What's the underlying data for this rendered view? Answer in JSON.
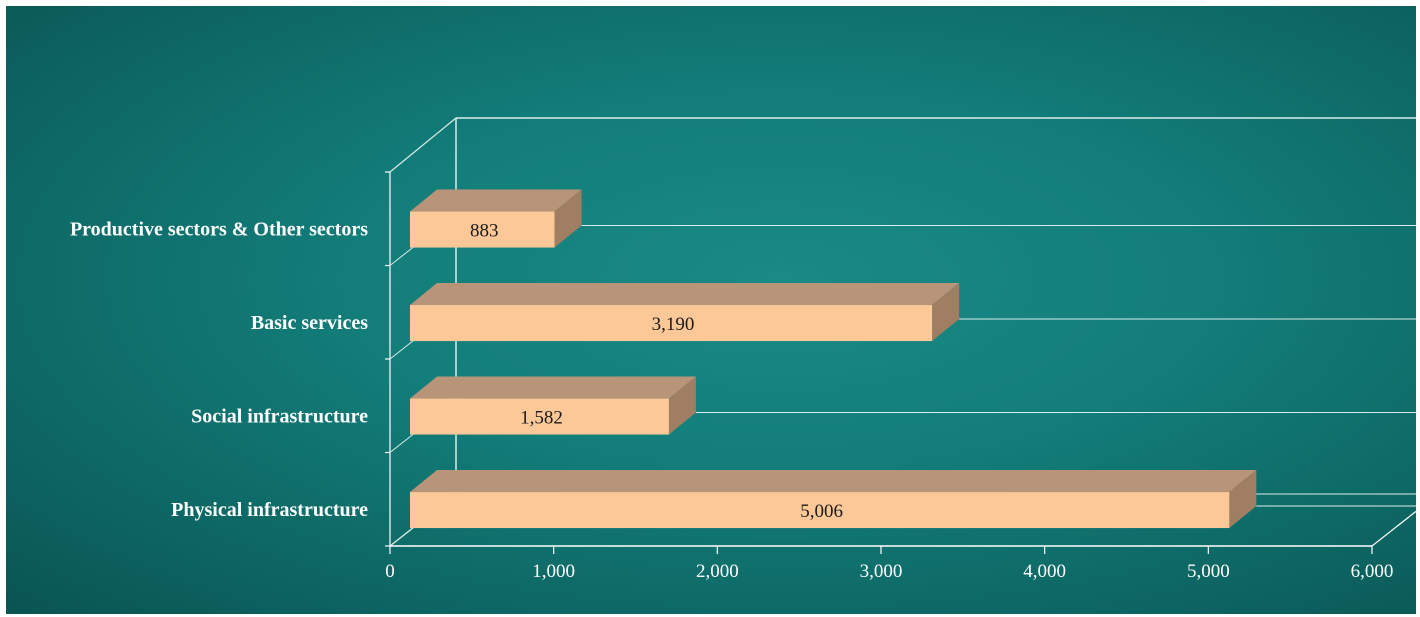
{
  "chart_data": {
    "type": "bar",
    "orientation": "horizontal",
    "style": "3d",
    "categories": [
      "Physical infrastructure",
      "Social infrastructure",
      "Basic services",
      "Productive sectors & Other sectors"
    ],
    "values": [
      5006,
      1582,
      3190,
      883
    ],
    "data_labels": [
      "5,006",
      "1,582",
      "3,190",
      "883"
    ],
    "xlim": [
      0,
      6000
    ],
    "x_ticks": [
      0,
      1000,
      2000,
      3000,
      4000,
      5000,
      6000
    ],
    "x_tick_labels": [
      "0",
      "1,000",
      "2,000",
      "3,000",
      "4,000",
      "5,000",
      "6,000"
    ],
    "title": "",
    "xlabel": "",
    "ylabel": "",
    "grid": true,
    "colors": {
      "bar_front": "#fcc898",
      "bar_top": "#b89578",
      "bar_side": "#a07e62",
      "background": "#137d79",
      "axis": "#ffffff",
      "label_text": "#ffffff"
    }
  }
}
